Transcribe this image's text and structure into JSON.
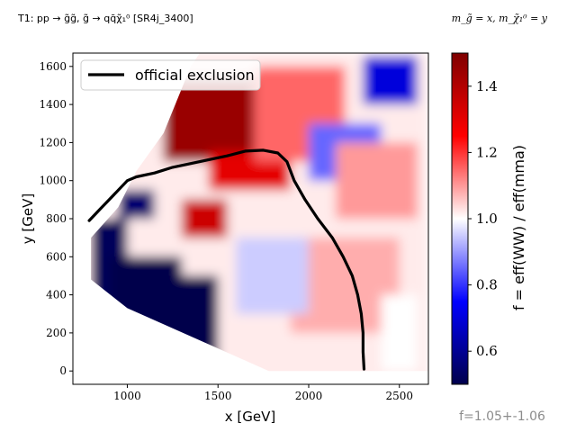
{
  "header": {
    "title_left": "T1: pp → g̃g̃, g̃ → qq̄χ̃₁⁰ [SR4j_3400]",
    "title_right": "m_g̃ = x, m_χ̃₁⁰ = y"
  },
  "footer": {
    "summary": "f=1.05+-1.06"
  },
  "colors": {
    "low": "#00004c",
    "mid": "#ffffff",
    "high": "#7f0000",
    "exclusion_line": "#000000",
    "summary_text": "#8c8c8c"
  },
  "chart_data": {
    "type": "heatmap",
    "title": "T1: pp → g̃g̃, g̃ → qq̄χ̃₁⁰ [SR4j_3400]",
    "xlabel": "x [GeV]",
    "ylabel": "y [GeV]",
    "xlim": [
      700,
      2660
    ],
    "ylim": [
      -70,
      1670
    ],
    "xticks": [
      1000,
      1500,
      2000,
      2500
    ],
    "yticks": [
      0,
      200,
      400,
      600,
      800,
      1000,
      1200,
      1400,
      1600
    ],
    "colorbar": {
      "label": "f = eff(WW) / eff(mma)",
      "min": 0.5,
      "max": 1.5,
      "ticks": [
        0.6,
        0.8,
        1.0,
        1.2,
        1.4
      ]
    },
    "legend": {
      "position": "top-left",
      "entries": [
        "official exclusion"
      ]
    },
    "exclusion_curve": {
      "name": "official exclusion",
      "points": [
        [
          790,
          790
        ],
        [
          850,
          850
        ],
        [
          900,
          900
        ],
        [
          950,
          950
        ],
        [
          1000,
          1000
        ],
        [
          1050,
          1020
        ],
        [
          1150,
          1040
        ],
        [
          1250,
          1070
        ],
        [
          1350,
          1090
        ],
        [
          1450,
          1110
        ],
        [
          1550,
          1130
        ],
        [
          1650,
          1155
        ],
        [
          1750,
          1160
        ],
        [
          1830,
          1145
        ],
        [
          1880,
          1100
        ],
        [
          1920,
          1000
        ],
        [
          1980,
          900
        ],
        [
          2050,
          800
        ],
        [
          2130,
          700
        ],
        [
          2190,
          600
        ],
        [
          2240,
          500
        ],
        [
          2270,
          400
        ],
        [
          2290,
          300
        ],
        [
          2300,
          200
        ],
        [
          2300,
          100
        ],
        [
          2305,
          10
        ]
      ]
    },
    "summary": "f=1.05+-1.06",
    "heatmap_regions": [
      {
        "x": [
          800,
          1000
        ],
        "y": [
          300,
          800
        ],
        "f": 0.52
      },
      {
        "x": [
          900,
          1300
        ],
        "y": [
          100,
          600
        ],
        "f": 0.5
      },
      {
        "x": [
          1100,
          1500
        ],
        "y": [
          0,
          500
        ],
        "f": 0.5
      },
      {
        "x": [
          950,
          1150
        ],
        "y": [
          800,
          950
        ],
        "f": 0.55
      },
      {
        "x": [
          1300,
          1550
        ],
        "y": [
          700,
          900
        ],
        "f": 1.35
      },
      {
        "x": [
          1200,
          1900
        ],
        "y": [
          1100,
          1550
        ],
        "f": 1.45
      },
      {
        "x": [
          1450,
          1900
        ],
        "y": [
          950,
          1150
        ],
        "f": 1.3
      },
      {
        "x": [
          1700,
          2200
        ],
        "y": [
          1100,
          1600
        ],
        "f": 1.15
      },
      {
        "x": [
          2300,
          2600
        ],
        "y": [
          1400,
          1650
        ],
        "f": 0.7
      },
      {
        "x": [
          2000,
          2400
        ],
        "y": [
          1000,
          1300
        ],
        "f": 0.85
      },
      {
        "x": [
          2150,
          2600
        ],
        "y": [
          800,
          1200
        ],
        "f": 1.1
      },
      {
        "x": [
          1900,
          2500
        ],
        "y": [
          200,
          700
        ],
        "f": 1.08
      },
      {
        "x": [
          1600,
          2000
        ],
        "y": [
          300,
          700
        ],
        "f": 0.95
      },
      {
        "x": [
          2400,
          2600
        ],
        "y": [
          0,
          400
        ],
        "f": 1.0
      }
    ]
  }
}
